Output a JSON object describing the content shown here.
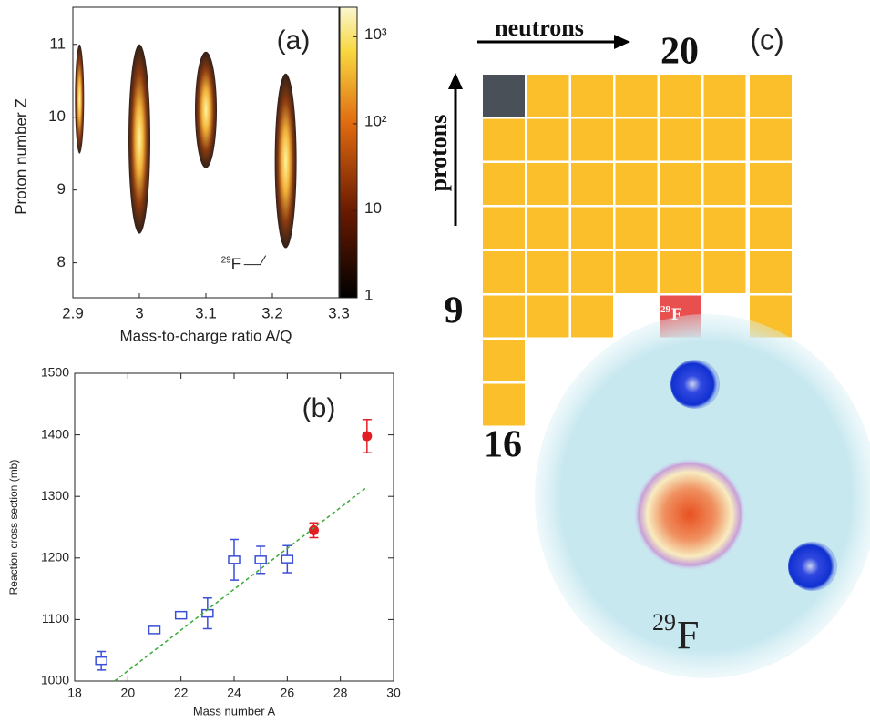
{
  "chart_data": [
    {
      "type": "density",
      "panel_label": "(a)",
      "x_label": "Mass-to-charge ratio A/Q",
      "y_label": "Proton number Z",
      "xlim": [
        2.9,
        3.3
      ],
      "ylim": [
        7.52,
        11.51
      ],
      "xticks": [
        2.9,
        3,
        3.1,
        3.2,
        3.3
      ],
      "yticks": [
        8,
        9,
        10,
        11
      ],
      "clusters": {
        "x": [
          2.91,
          3.0,
          3.1,
          3.22
        ],
        "y": [
          10.3,
          9.9,
          10.1,
          9.2
        ],
        "y_min": [
          9.5,
          8.4,
          9.3,
          8.2
        ],
        "y_max": [
          11.0,
          11.0,
          10.9,
          10.6
        ]
      },
      "clim": [
        1,
        2180
      ],
      "log_color": true,
      "cticks": [
        1,
        10,
        {
          "value": 100,
          "label": "10²"
        },
        {
          "value": 1000,
          "label": "10³"
        }
      ],
      "annotation": {
        "mass": "29",
        "symbol": "F",
        "x": 3.19,
        "y": 8.0
      }
    },
    {
      "type": "scatter",
      "panel_label": "(b)",
      "x_label": "Mass number A",
      "y_label": "Reaction cross section (mb)",
      "xlim": [
        18,
        30
      ],
      "ylim": [
        1000,
        1500
      ],
      "xticks": [
        18,
        20,
        22,
        24,
        26,
        28,
        30
      ],
      "yticks": [
        1000,
        1100,
        1200,
        1300,
        1400,
        1500
      ],
      "series": [
        {
          "color": "#3a4fd8",
          "marker": "open-square",
          "x": [
            19,
            21,
            22,
            23,
            24,
            25,
            26
          ],
          "values": [
            1033,
            1083,
            1107,
            1110,
            1197,
            1197,
            1198
          ],
          "errors": [
            15,
            5,
            5,
            25,
            33,
            22,
            22
          ]
        },
        {
          "color": "#e31e24",
          "marker": "filled-circle",
          "x": [
            27,
            29
          ],
          "values": [
            1245,
            1398
          ],
          "errors": [
            12,
            27
          ]
        },
        {
          "color": "#3aaa35",
          "marker": "dashed-line",
          "x": [
            19.5,
            29
          ],
          "values": [
            1000,
            1315
          ]
        }
      ]
    }
  ],
  "diagram": {
    "panel_label": "(c)",
    "neutrons": "neutrons",
    "protons": "protons",
    "n_label": "20",
    "z_label": "9",
    "z2_label": "16",
    "cell": {
      "mass": "29",
      "symbol": "F"
    },
    "nucleus": {
      "mass": "29",
      "symbol": "F"
    }
  }
}
